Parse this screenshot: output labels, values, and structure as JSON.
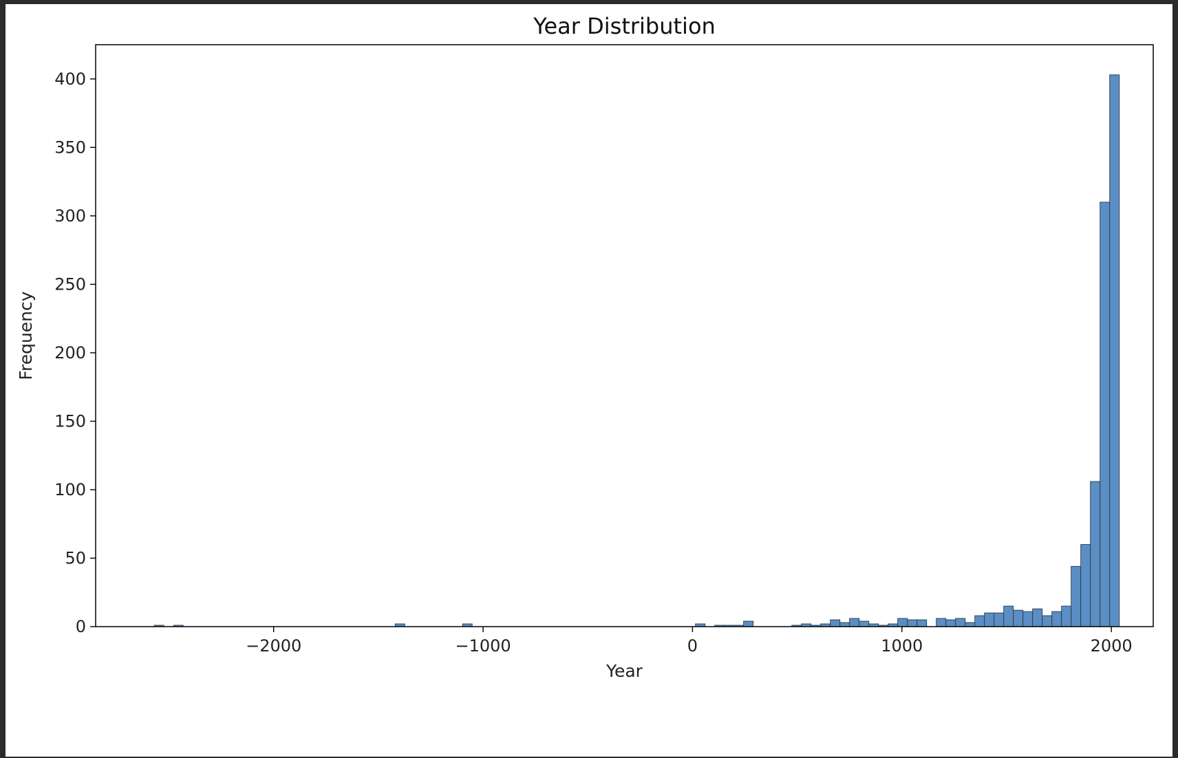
{
  "chart_data": {
    "type": "bar",
    "title": "Year Distribution",
    "xlabel": "Year",
    "ylabel": "Frequency",
    "xlim": [
      -2850,
      2200
    ],
    "ylim": [
      0,
      425
    ],
    "xticks": [
      -2000,
      -1000,
      0,
      1000,
      2000
    ],
    "xtick_labels": [
      "−2000",
      "−1000",
      "0",
      "1000",
      "2000"
    ],
    "yticks": [
      0,
      50,
      100,
      150,
      200,
      250,
      300,
      350,
      400
    ],
    "ytick_labels": [
      "0",
      "50",
      "100",
      "150",
      "200",
      "250",
      "300",
      "350",
      "400"
    ],
    "bin_width": 46,
    "bins": [
      {
        "x": -2570,
        "count": 1
      },
      {
        "x": -2478,
        "count": 1
      },
      {
        "x": -1420,
        "count": 2
      },
      {
        "x": -1098,
        "count": 2
      },
      {
        "x": 14,
        "count": 2
      },
      {
        "x": 106,
        "count": 1
      },
      {
        "x": 152,
        "count": 1
      },
      {
        "x": 198,
        "count": 1
      },
      {
        "x": 244,
        "count": 4
      },
      {
        "x": 474,
        "count": 1
      },
      {
        "x": 520,
        "count": 2
      },
      {
        "x": 566,
        "count": 1
      },
      {
        "x": 612,
        "count": 2
      },
      {
        "x": 658,
        "count": 5
      },
      {
        "x": 704,
        "count": 3
      },
      {
        "x": 750,
        "count": 6
      },
      {
        "x": 796,
        "count": 4
      },
      {
        "x": 842,
        "count": 2
      },
      {
        "x": 888,
        "count": 1
      },
      {
        "x": 934,
        "count": 2
      },
      {
        "x": 980,
        "count": 6
      },
      {
        "x": 1026,
        "count": 5
      },
      {
        "x": 1072,
        "count": 5
      },
      {
        "x": 1164,
        "count": 6
      },
      {
        "x": 1210,
        "count": 5
      },
      {
        "x": 1256,
        "count": 6
      },
      {
        "x": 1302,
        "count": 3
      },
      {
        "x": 1348,
        "count": 8
      },
      {
        "x": 1394,
        "count": 10
      },
      {
        "x": 1440,
        "count": 10
      },
      {
        "x": 1486,
        "count": 15
      },
      {
        "x": 1532,
        "count": 12
      },
      {
        "x": 1578,
        "count": 11
      },
      {
        "x": 1624,
        "count": 13
      },
      {
        "x": 1670,
        "count": 8
      },
      {
        "x": 1716,
        "count": 11
      },
      {
        "x": 1762,
        "count": 15
      },
      {
        "x": 1808,
        "count": 44
      },
      {
        "x": 1854,
        "count": 60
      },
      {
        "x": 1900,
        "count": 106
      },
      {
        "x": 1946,
        "count": 310
      },
      {
        "x": 1992,
        "count": 403
      }
    ],
    "bar_color": "#5b8ec4",
    "edge_color": "#2a3a4a",
    "grid": false,
    "legend": "none"
  }
}
